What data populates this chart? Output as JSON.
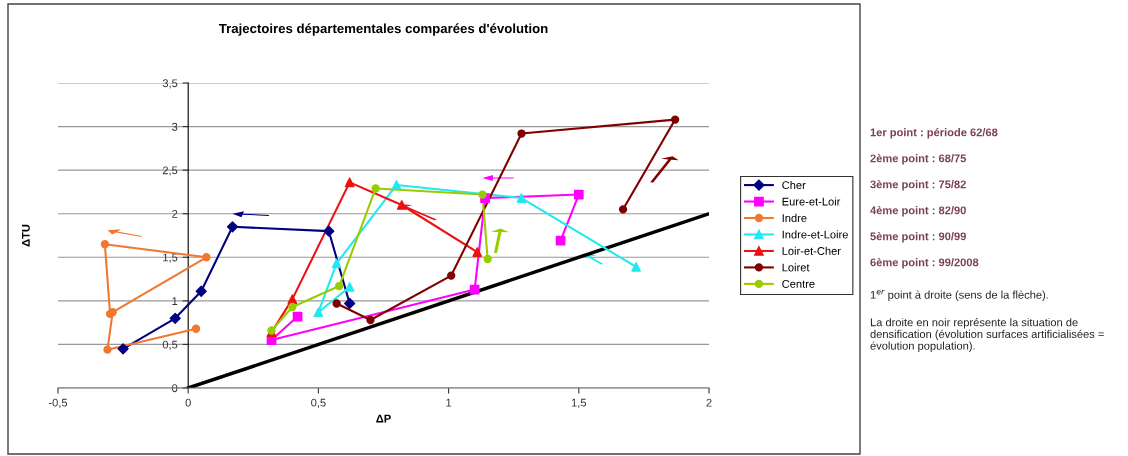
{
  "chart_data": {
    "type": "line",
    "title": "Trajectoires départementales comparées d'évolution",
    "xlabel": "ΔP",
    "ylabel": "ΔTU",
    "xlim": [
      -0.5,
      2
    ],
    "xticks": [
      {
        "value": -0.5,
        "label": "-0,5"
      },
      0,
      {
        "value": 0.5,
        "label": "0,5"
      },
      1,
      {
        "value": 1.5,
        "label": "1,5"
      },
      2
    ],
    "ylim": [
      0,
      3.5
    ],
    "yticks": [
      0,
      {
        "value": 0.5,
        "label": "0,5"
      },
      1,
      {
        "value": 1.5,
        "label": "1,5"
      },
      2,
      {
        "value": 2.5,
        "label": "2,5"
      },
      3,
      {
        "value": 3.5,
        "label": "3,5"
      }
    ],
    "grid": "y",
    "legend": "right",
    "series": [
      {
        "name": "Cher",
        "color": "#000080",
        "marker": "diamond",
        "x": [
          0.62,
          0.54,
          0.17,
          0.05,
          -0.05,
          -0.25
        ],
        "values": [
          0.97,
          1.8,
          1.85,
          1.11,
          0.8,
          0.45
        ]
      },
      {
        "name": "Eure-et-Loir",
        "color": "#ff00ff",
        "marker": "square",
        "x": [
          1.43,
          1.5,
          1.14,
          1.1,
          0.32,
          0.42
        ],
        "values": [
          1.69,
          2.22,
          2.18,
          1.13,
          0.55,
          0.82
        ]
      },
      {
        "name": "Indre",
        "color": "#f07830",
        "marker": "circle",
        "x": [
          0.03,
          -0.31,
          -0.29,
          0.07,
          -0.32,
          -0.3
        ],
        "values": [
          0.68,
          0.44,
          0.87,
          1.5,
          1.65,
          0.85
        ]
      },
      {
        "name": "Indre-et-Loire",
        "color": "#22e8f0",
        "marker": "triangle",
        "x": [
          1.72,
          1.28,
          0.8,
          0.57,
          0.5,
          0.62
        ],
        "values": [
          1.39,
          2.18,
          2.33,
          1.43,
          0.87,
          1.16
        ]
      },
      {
        "name": "Loir-et-Cher",
        "color": "#ee1111",
        "marker": "triangle",
        "x": [
          1.11,
          0.82,
          0.62,
          0.4,
          0.32
        ],
        "values": [
          1.56,
          2.1,
          2.36,
          1.02,
          0.64
        ]
      },
      {
        "name": "Loiret",
        "color": "#800000",
        "marker": "circle",
        "x": [
          1.67,
          1.87,
          1.28,
          1.01,
          0.7,
          0.57
        ],
        "values": [
          2.05,
          3.08,
          2.92,
          1.29,
          0.78,
          0.97
        ]
      },
      {
        "name": "Centre",
        "color": "#99cc00",
        "marker": "circle",
        "x": [
          1.15,
          1.13,
          0.72,
          0.58,
          0.4,
          0.32
        ],
        "values": [
          1.48,
          2.22,
          2.29,
          1.17,
          0.93,
          0.66
        ]
      },
      {
        "color": "#000000",
        "marker": "none",
        "x": [
          0,
          2
        ],
        "values": [
          0,
          2
        ]
      }
    ],
    "annotations": [
      "1er point : période 62/68",
      "2ème point : 68/75",
      "3ème point : 75/82",
      "4ème point : 82/90",
      "5ème point : 90/99",
      "6ème point : 99/2008",
      "1$^{er}$ point à droite (sens de la flèche).",
      "La droite en noir représente la situation de densification (évolution surfaces artificialisées = évolution population)."
    ]
  }
}
